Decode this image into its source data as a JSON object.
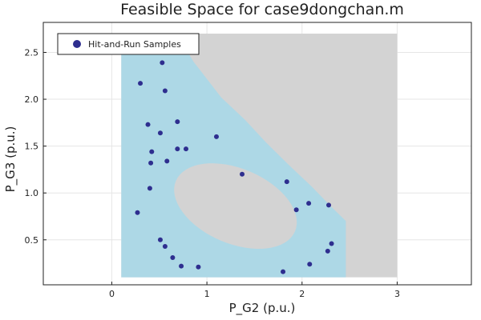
{
  "chart_data": {
    "type": "scatter",
    "title": "Feasible Space for case9dongchan.m",
    "xlabel": "P_G2 (p.u.)",
    "ylabel": "P_G3 (p.u.)",
    "xlim": [
      -0.72,
      3.78
    ],
    "ylim": [
      0.02,
      2.82
    ],
    "xticks": [
      0,
      1,
      2,
      3
    ],
    "yticks": [
      0.5,
      1.0,
      1.5,
      2.0,
      2.5
    ],
    "xtick_labels": [
      "0",
      "1",
      "2",
      "3"
    ],
    "ytick_labels": [
      "0.5",
      "1.0",
      "1.5",
      "2.0",
      "2.5"
    ],
    "grid": true,
    "legend_position": "top-left",
    "colors": {
      "background_region": "#d3d3d3",
      "feasible_region": "#add8e6",
      "samples": "#2e2e8f"
    },
    "regions": {
      "bounding_box": {
        "x": [
          0.1,
          3.0
        ],
        "y": [
          0.1,
          2.7
        ]
      },
      "feasible_outline": [
        [
          0.1,
          2.7
        ],
        [
          0.68,
          2.7
        ],
        [
          0.86,
          2.4
        ],
        [
          1.15,
          2.02
        ],
        [
          1.4,
          1.78
        ],
        [
          1.62,
          1.54
        ],
        [
          1.86,
          1.3
        ],
        [
          2.1,
          1.07
        ],
        [
          2.3,
          0.86
        ],
        [
          2.46,
          0.7
        ],
        [
          2.46,
          0.1
        ],
        [
          0.1,
          0.1
        ]
      ],
      "infeasible_hole": {
        "cx": 1.3,
        "cy": 0.86,
        "rx": 0.68,
        "ry": 0.4,
        "rotation_deg": -23
      }
    },
    "series": [
      {
        "name": "Hit-and-Run Samples",
        "points": [
          [
            0.53,
            2.39
          ],
          [
            0.3,
            2.17
          ],
          [
            0.56,
            2.09
          ],
          [
            0.38,
            1.73
          ],
          [
            0.69,
            1.76
          ],
          [
            0.51,
            1.64
          ],
          [
            0.42,
            1.44
          ],
          [
            0.69,
            1.47
          ],
          [
            0.78,
            1.47
          ],
          [
            1.1,
            1.6
          ],
          [
            0.41,
            1.32
          ],
          [
            0.58,
            1.34
          ],
          [
            1.37,
            1.2
          ],
          [
            0.4,
            1.05
          ],
          [
            1.84,
            1.12
          ],
          [
            0.27,
            0.79
          ],
          [
            2.07,
            0.89
          ],
          [
            2.28,
            0.87
          ],
          [
            1.94,
            0.82
          ],
          [
            0.51,
            0.5
          ],
          [
            0.56,
            0.43
          ],
          [
            0.64,
            0.31
          ],
          [
            0.73,
            0.22
          ],
          [
            0.91,
            0.21
          ],
          [
            2.31,
            0.46
          ],
          [
            2.27,
            0.38
          ],
          [
            2.08,
            0.24
          ],
          [
            1.8,
            0.16
          ]
        ]
      }
    ]
  }
}
